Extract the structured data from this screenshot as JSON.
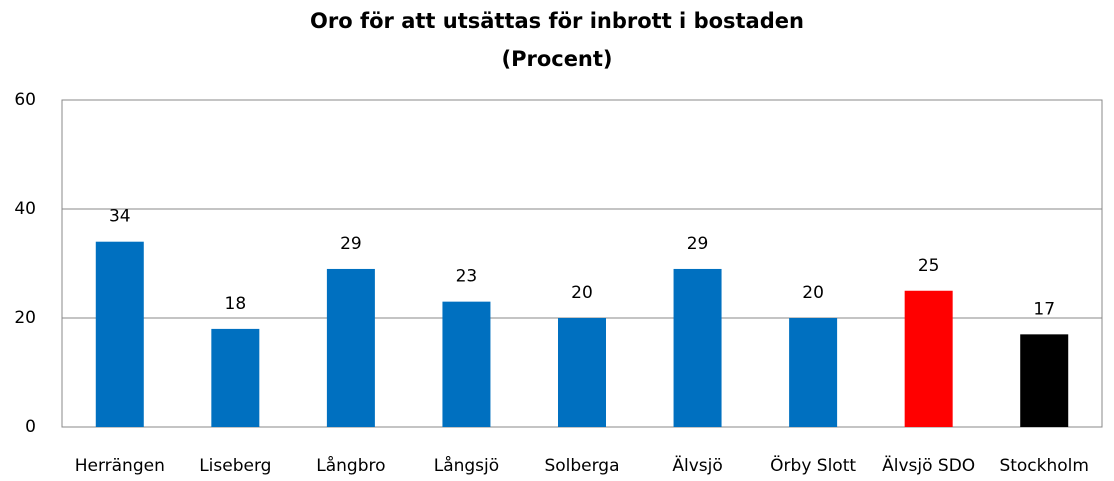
{
  "chart_data": {
    "type": "bar",
    "title": "Oro för att utsättas för inbrott i bostaden",
    "subtitle": "(Procent)",
    "categories": [
      "Herrängen",
      "Liseberg",
      "Långbro",
      "Långsjö",
      "Solberga",
      "Älvsjö",
      "Örby Slott",
      "Älvsjö SDO",
      "Stockholm"
    ],
    "values": [
      34,
      18,
      29,
      23,
      20,
      29,
      20,
      25,
      17
    ],
    "colors": [
      "#0070c0",
      "#0070c0",
      "#0070c0",
      "#0070c0",
      "#0070c0",
      "#0070c0",
      "#0070c0",
      "#ff0000",
      "#000000"
    ],
    "ylim": [
      0,
      60
    ],
    "yticks": [
      0,
      20,
      40,
      60
    ],
    "grid": true
  }
}
